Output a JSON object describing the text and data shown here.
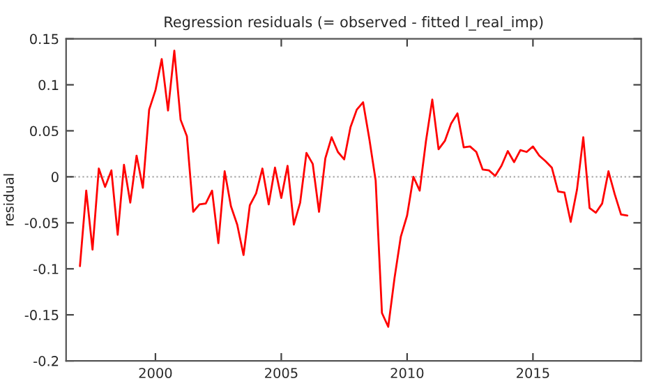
{
  "chart_data": {
    "type": "line",
    "title": "Regression residuals (= observed - fitted l_real_imp)",
    "ylabel": "residual",
    "x": [
      1997,
      1997.25,
      1997.5,
      1997.75,
      1998,
      1998.25,
      1998.5,
      1998.75,
      1999,
      1999.25,
      1999.5,
      1999.75,
      2000,
      2000.25,
      2000.5,
      2000.75,
      2001,
      2001.25,
      2001.5,
      2001.75,
      2002,
      2002.25,
      2002.5,
      2002.75,
      2003,
      2003.25,
      2003.5,
      2003.75,
      2004,
      2004.25,
      2004.5,
      2004.75,
      2005,
      2005.25,
      2005.5,
      2005.75,
      2006,
      2006.25,
      2006.5,
      2006.75,
      2007,
      2007.25,
      2007.5,
      2007.75,
      2008,
      2008.25,
      2008.5,
      2008.75,
      2009,
      2009.25,
      2009.5,
      2009.75,
      2010,
      2010.25,
      2010.5,
      2010.75,
      2011,
      2011.25,
      2011.5,
      2011.75,
      2012,
      2012.25,
      2012.5,
      2012.75,
      2013,
      2013.25,
      2013.5,
      2013.75,
      2014,
      2014.25,
      2014.5,
      2014.75,
      2015,
      2015.25,
      2015.5,
      2015.75,
      2016,
      2016.25,
      2016.5,
      2016.75,
      2017,
      2017.25,
      2017.5,
      2017.75,
      2018,
      2018.25,
      2018.5,
      2018.75
    ],
    "series": [
      {
        "color": "#ff0000",
        "values": [
          -0.097,
          -0.015,
          -0.079,
          0.009,
          -0.011,
          0.007,
          -0.063,
          0.013,
          -0.028,
          0.023,
          -0.012,
          0.073,
          0.094,
          0.128,
          0.072,
          0.137,
          0.062,
          0.044,
          -0.038,
          -0.03,
          -0.029,
          -0.015,
          -0.072,
          0.006,
          -0.032,
          -0.052,
          -0.085,
          -0.031,
          -0.018,
          0.009,
          -0.03,
          0.01,
          -0.023,
          0.012,
          -0.052,
          -0.028,
          0.026,
          0.014,
          -0.038,
          0.02,
          0.043,
          0.027,
          0.019,
          0.054,
          0.073,
          0.081,
          0.041,
          -0.004,
          -0.148,
          -0.163,
          -0.11,
          -0.065,
          -0.042,
          0.0,
          -0.015,
          0.039,
          0.084,
          0.03,
          0.039,
          0.058,
          0.069,
          0.032,
          0.033,
          0.027,
          0.008,
          0.007,
          0.001,
          0.012,
          0.028,
          0.016,
          0.029,
          0.027,
          0.033,
          0.023,
          0.017,
          0.01,
          -0.016,
          -0.017,
          -0.049,
          -0.014,
          0.043,
          -0.034,
          -0.039,
          -0.029,
          0.006,
          -0.019,
          -0.041,
          -0.042
        ]
      }
    ],
    "xlim": [
      1996.45,
      2019.3
    ],
    "xticks": [
      2000,
      2005,
      2010,
      2015
    ],
    "ylim": [
      -0.2,
      0.15
    ],
    "yticks": [
      -0.2,
      -0.15,
      -0.1,
      -0.05,
      0,
      0.05,
      0.1,
      0.15
    ],
    "ref_lines": [
      {
        "axis": "y",
        "value": 0,
        "color": "#aaaaaa",
        "line_style": "dotted"
      }
    ],
    "grid": false,
    "legend": false,
    "marker": "none",
    "line_style": "solid"
  }
}
